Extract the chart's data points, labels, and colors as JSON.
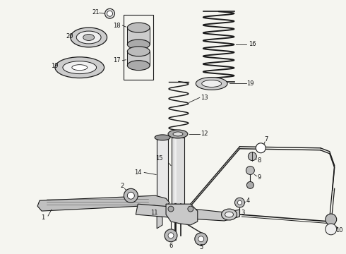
{
  "background_color": "#f5f5f0",
  "line_color": "#1a1a1a",
  "fig_width": 4.9,
  "fig_height": 3.6,
  "dpi": 100
}
